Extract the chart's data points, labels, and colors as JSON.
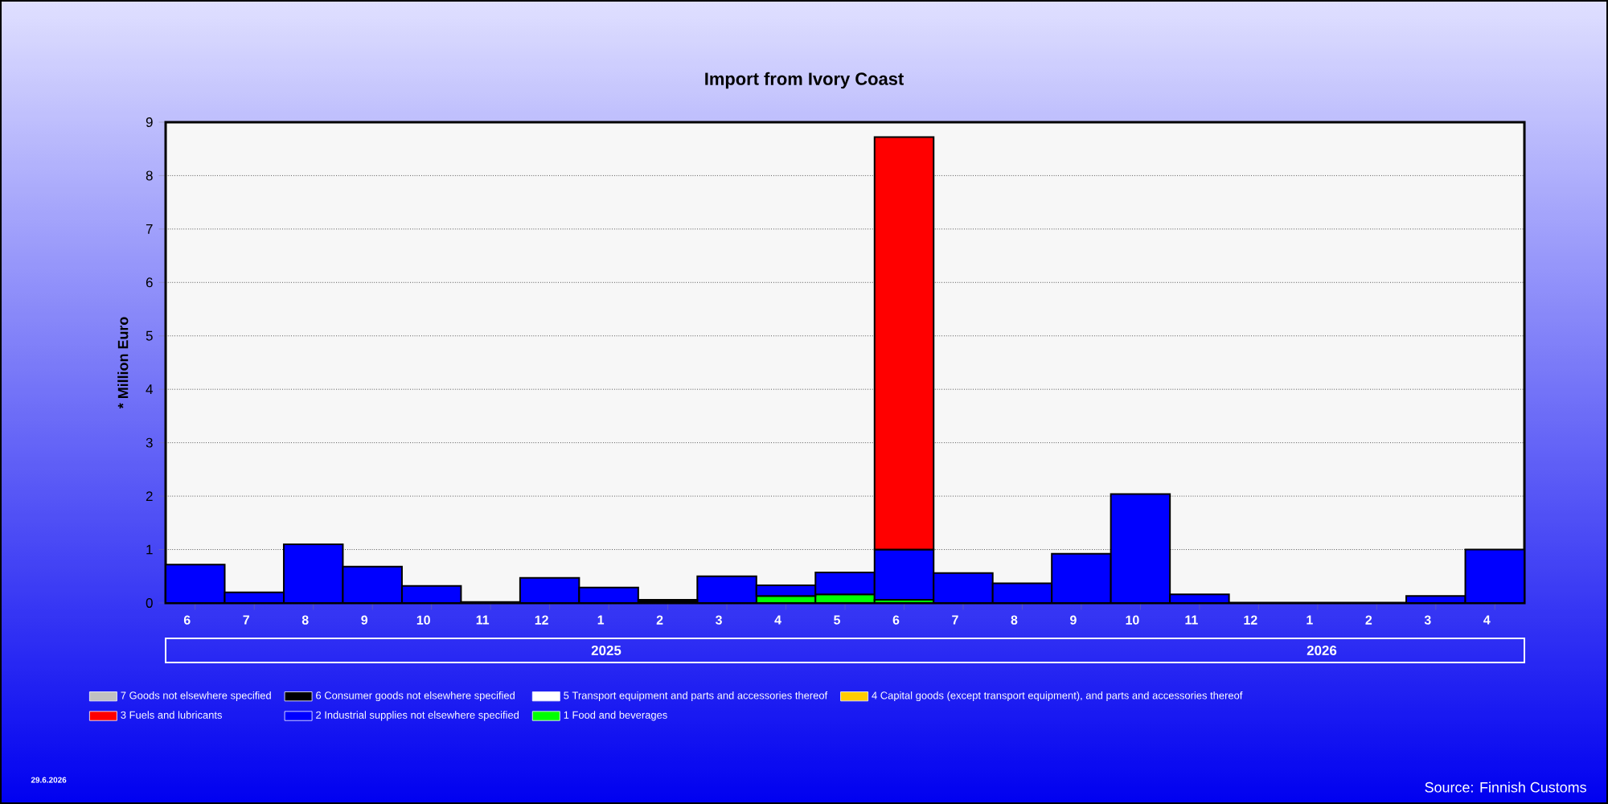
{
  "chart_data": {
    "type": "bar",
    "stacked": true,
    "title": "Import from Ivory Coast",
    "ylabel": "* Million Euro",
    "categories": [
      "6",
      "7",
      "8",
      "9",
      "10",
      "11",
      "12",
      "1",
      "2",
      "3",
      "4",
      "5",
      "6",
      "7",
      "8",
      "9",
      "10",
      "11",
      "12",
      "1",
      "2",
      "3",
      "4"
    ],
    "ylim": [
      0,
      9
    ],
    "yticks": [
      0,
      1,
      2,
      3,
      4,
      5,
      6,
      7,
      8,
      9
    ],
    "grid": "y",
    "legend": "bottom",
    "series": [
      {
        "name": "1 Food and beverages",
        "color": "#00ff00",
        "values": [
          null,
          null,
          null,
          null,
          null,
          null,
          null,
          null,
          null,
          null,
          0.13,
          0.16,
          0.06,
          null,
          null,
          null,
          null,
          null,
          null,
          null,
          null,
          null,
          null
        ]
      },
      {
        "name": "2 Industrial supplies not elsewhere specified",
        "color": "#0000ff",
        "values": [
          0.72,
          0.2,
          1.1,
          0.68,
          0.32,
          0.02,
          0.47,
          0.29,
          null,
          0.5,
          0.2,
          0.41,
          0.94,
          0.56,
          0.37,
          0.92,
          2.04,
          0.16,
          null,
          null,
          null,
          0.13,
          1.0
        ]
      },
      {
        "name": "3 Fuels and lubricants",
        "color": "#ff0000",
        "values": [
          null,
          null,
          null,
          null,
          null,
          null,
          null,
          null,
          null,
          null,
          null,
          null,
          7.72,
          null,
          null,
          null,
          null,
          null,
          null,
          null,
          null,
          null,
          null
        ]
      },
      {
        "name": "4 Capital goods (except transport equipment), and parts and accessories thereof",
        "color": "#ffcc00",
        "values": [
          null,
          null,
          null,
          null,
          null,
          null,
          null,
          null,
          null,
          null,
          null,
          null,
          null,
          null,
          null,
          null,
          null,
          null,
          null,
          null,
          null,
          null,
          null
        ]
      },
      {
        "name": "5  Transport equipment and parts and accessories thereof",
        "color": "#ffffff",
        "values": [
          null,
          null,
          null,
          null,
          null,
          null,
          null,
          null,
          null,
          null,
          null,
          null,
          null,
          null,
          null,
          null,
          null,
          null,
          null,
          null,
          null,
          null,
          null
        ]
      },
      {
        "name": "6 Consumer goods not elsewhere specified",
        "color": "#000000",
        "values": [
          null,
          null,
          null,
          null,
          null,
          null,
          null,
          null,
          0.06,
          null,
          null,
          null,
          null,
          null,
          null,
          null,
          null,
          null,
          null,
          null,
          null,
          null,
          null
        ]
      },
      {
        "name": "7 Goods not elsewhere specified",
        "color": "#c0c0c0",
        "values": [
          null,
          null,
          null,
          null,
          null,
          null,
          null,
          null,
          null,
          null,
          null,
          null,
          null,
          null,
          null,
          null,
          null,
          null,
          null,
          null,
          null,
          null,
          null
        ]
      }
    ],
    "annotations": [
      "2025",
      "2026",
      "29.6.2026",
      "Source: Finnish Customs"
    ]
  }
}
